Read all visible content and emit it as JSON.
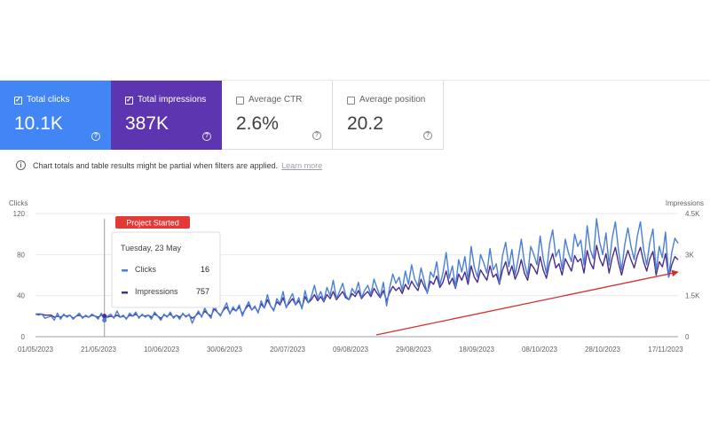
{
  "metrics": [
    {
      "label": "Total clicks",
      "value": "10.1K",
      "selected": true,
      "color": "#4285f4"
    },
    {
      "label": "Total impressions",
      "value": "387K",
      "selected": true,
      "color": "#5e35b1"
    },
    {
      "label": "Average CTR",
      "value": "2.6%",
      "selected": false
    },
    {
      "label": "Average position",
      "value": "20.2",
      "selected": false
    }
  ],
  "help_icon": "?",
  "notice": {
    "icon": "info-icon",
    "text": "Chart totals and table results might be partial when filters are applied.",
    "link": "Learn more"
  },
  "annotation": {
    "label": "Project Started",
    "color": "#e53935"
  },
  "tooltip": {
    "date": "Tuesday, 23 May",
    "rows": [
      {
        "name": "Clicks",
        "value": "16",
        "color": "#4a7fd4"
      },
      {
        "name": "Impressions",
        "value": "757",
        "color": "#4a2c8f"
      }
    ]
  },
  "trend_arrow_color": "#d32f2f",
  "chart_data": {
    "type": "line",
    "left_axis_title": "Clicks",
    "right_axis_title": "Impressions",
    "left_ylim": [
      0,
      120
    ],
    "right_ylim": [
      0,
      4500
    ],
    "left_ticks": [
      "0",
      "40",
      "80",
      "120"
    ],
    "right_ticks": [
      "0",
      "1.5K",
      "3K",
      "4.5K"
    ],
    "x_ticks": [
      "01/05/2023",
      "21/05/2023",
      "10/06/2023",
      "30/06/2023",
      "20/07/2023",
      "09/08/2023",
      "29/08/2023",
      "18/09/2023",
      "08/10/2023",
      "28/10/2023",
      "17/11/2023"
    ],
    "grid": true,
    "series": [
      {
        "name": "Clicks",
        "axis": "left",
        "color": "#4a7fd4",
        "values": [
          22,
          21,
          22,
          18,
          19,
          20,
          16,
          23,
          17,
          22,
          19,
          21,
          17,
          20,
          23,
          18,
          21,
          19,
          22,
          20,
          17,
          23,
          16,
          20,
          22,
          18,
          25,
          19,
          21,
          17,
          23,
          20,
          24,
          18,
          22,
          19,
          21,
          17,
          24,
          20,
          16,
          22,
          19,
          24,
          18,
          21,
          17,
          23,
          19,
          22,
          13,
          20,
          25,
          19,
          28,
          22,
          18,
          31,
          24,
          20,
          27,
          33,
          22,
          29,
          25,
          31,
          20,
          28,
          34,
          26,
          30,
          23,
          35,
          28,
          41,
          30,
          25,
          37,
          32,
          44,
          28,
          36,
          42,
          31,
          38,
          27,
          45,
          33,
          39,
          50,
          37,
          44,
          35,
          48,
          40,
          55,
          37,
          44,
          52,
          40,
          36,
          47,
          42,
          53,
          38,
          45,
          50,
          41,
          56,
          47,
          39,
          53,
          30,
          48,
          61,
          52,
          58,
          45,
          64,
          51,
          70,
          56,
          49,
          67,
          55,
          42,
          63,
          58,
          73,
          50,
          62,
          82,
          57,
          69,
          48,
          75,
          63,
          78,
          55,
          88,
          68,
          58,
          80,
          72,
          62,
          86,
          65,
          71,
          52,
          79,
          92,
          68,
          85,
          60,
          76,
          95,
          72,
          59,
          88,
          80,
          70,
          98,
          76,
          62,
          90,
          104,
          78,
          85,
          66,
          95,
          82,
          73,
          100,
          88,
          94,
          70,
          108,
          85,
          76,
          115,
          92,
          80,
          101,
          70,
          96,
          112,
          84,
          65,
          90,
          106,
          88,
          75,
          98,
          112,
          85,
          70,
          92,
          105,
          64,
          88,
          77,
          102,
          58,
          82,
          96,
          91
        ]
      },
      {
        "name": "Impressions",
        "axis": "right",
        "color": "#4a2c8f",
        "values": [
          825,
          825,
          825,
          788,
          788,
          788,
          713,
          750,
          713,
          788,
          750,
          788,
          675,
          750,
          788,
          713,
          750,
          713,
          788,
          750,
          713,
          788,
          757,
          713,
          750,
          713,
          788,
          713,
          750,
          675,
          788,
          750,
          825,
          713,
          788,
          750,
          788,
          713,
          825,
          750,
          675,
          788,
          750,
          825,
          713,
          788,
          713,
          825,
          750,
          788,
          675,
          750,
          863,
          750,
          938,
          825,
          750,
          1013,
          900,
          788,
          975,
          1088,
          863,
          1013,
          938,
          1088,
          825,
          1013,
          1163,
          975,
          1088,
          900,
          1200,
          1050,
          1350,
          1125,
          975,
          1275,
          1163,
          1425,
          1088,
          1238,
          1388,
          1163,
          1313,
          1050,
          1463,
          1238,
          1350,
          1538,
          1313,
          1463,
          1275,
          1538,
          1388,
          1650,
          1350,
          1500,
          1650,
          1425,
          1350,
          1575,
          1463,
          1688,
          1388,
          1538,
          1650,
          1463,
          1763,
          1575,
          1425,
          1688,
          1313,
          1613,
          1838,
          1688,
          1800,
          1575,
          1913,
          1725,
          2025,
          1838,
          1688,
          2100,
          1838,
          1613,
          2025,
          1913,
          2213,
          1800,
          1988,
          2400,
          1913,
          2138,
          1763,
          2288,
          2063,
          2363,
          1913,
          2588,
          2175,
          1988,
          2438,
          2250,
          2063,
          2588,
          2175,
          2288,
          1913,
          2438,
          2738,
          2250,
          2588,
          2100,
          2363,
          2813,
          2325,
          2063,
          2663,
          2513,
          2288,
          2925,
          2438,
          2138,
          2700,
          3038,
          2513,
          2663,
          2250,
          2850,
          2625,
          2400,
          2963,
          2738,
          2850,
          2325,
          3150,
          2700,
          2475,
          3338,
          2850,
          2588,
          3038,
          2325,
          2888,
          3263,
          2700,
          2250,
          2775,
          3150,
          2813,
          2513,
          2963,
          3263,
          2738,
          2400,
          2850,
          3113,
          2250,
          2738,
          2550,
          3038,
          2175,
          2625,
          2925,
          2813
        ]
      }
    ]
  }
}
